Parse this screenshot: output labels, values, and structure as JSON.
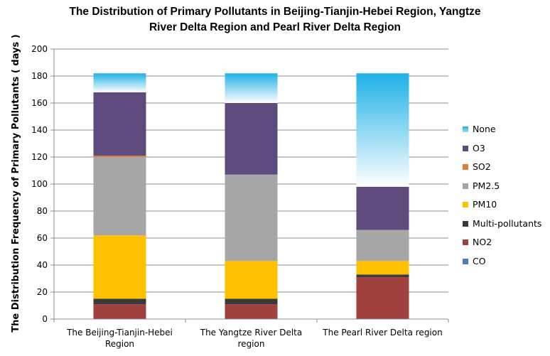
{
  "chart_data": {
    "type": "bar",
    "stacked": true,
    "title_lines": [
      "The  Distribution of Primary Pollutants in Beijing-Tianjin-Hebei Region, Yangtze",
      "River Delta Region and Pearl River Delta Region"
    ],
    "ylabel": "The Distribution Frequency of Primary Pollutants ( days )",
    "xlabel": "",
    "ylim": [
      0,
      200
    ],
    "yticks": [
      0,
      20,
      40,
      60,
      80,
      100,
      120,
      140,
      160,
      180,
      200
    ],
    "grid": true,
    "legend_position": "right",
    "categories": [
      [
        "The Beijing-Tianjin-Hebei",
        "Region"
      ],
      [
        "The Yangtze River Delta",
        "region"
      ],
      [
        "The Pearl River Delta region"
      ]
    ],
    "series": [
      {
        "name": "CO",
        "color": "#4a7ebb",
        "values": [
          0,
          0,
          0
        ]
      },
      {
        "name": "NO2",
        "color": "#a0413f",
        "values": [
          11,
          11,
          31
        ]
      },
      {
        "name": "Multi-pollutants",
        "color": "#3a3a3a",
        "values": [
          4,
          4,
          2
        ]
      },
      {
        "name": "PM10",
        "color": "#ffc000",
        "values": [
          47,
          28,
          10
        ]
      },
      {
        "name": "PM2.5",
        "color": "#a6a6a6",
        "values": [
          58,
          64,
          23
        ]
      },
      {
        "name": "SO2",
        "color": "#e07b39",
        "values": [
          1,
          0,
          0
        ]
      },
      {
        "name": "O3",
        "color": "#5f4a7d",
        "values": [
          47,
          53,
          32
        ]
      },
      {
        "name": "None",
        "color": "#1eb1e6",
        "values": [
          14,
          22,
          84
        ]
      }
    ],
    "legend_order": [
      "None",
      "O3",
      "SO2",
      "PM2.5",
      "PM10",
      "Multi-pollutants",
      "NO2",
      "CO"
    ]
  }
}
